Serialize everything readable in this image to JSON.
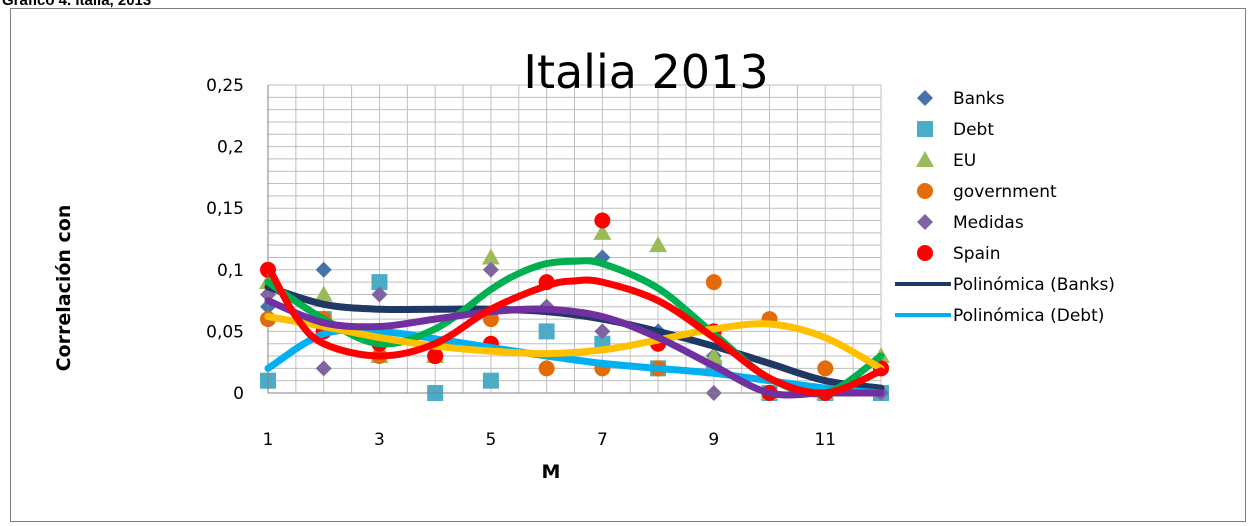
{
  "caption": "Grafico 4. Italia, 2013",
  "chart_data": {
    "type": "scatter",
    "title": "Italia 2013",
    "xlabel": "M",
    "ylabel": "Correlación con",
    "xlim": [
      1,
      12
    ],
    "ylim": [
      0,
      0.25
    ],
    "xticks": [
      1,
      3,
      5,
      7,
      9,
      11
    ],
    "xtick_labels": [
      "1",
      "3",
      "5",
      "7",
      "9",
      "11"
    ],
    "yticks": [
      0,
      0.05,
      0.1,
      0.15,
      0.2,
      0.25
    ],
    "ytick_labels": [
      "0",
      "0,05",
      "0,1",
      "0,15",
      "0,2",
      "0,25"
    ],
    "grid": true,
    "legend_position": "right",
    "series": [
      {
        "name": "Banks",
        "marker": "diamond",
        "color": "#4572a7",
        "x": [
          1,
          2,
          3,
          4,
          5,
          6,
          7,
          8,
          9,
          10,
          11,
          12
        ],
        "y": [
          0.07,
          0.1,
          0.09,
          0.03,
          0.06,
          0.07,
          0.11,
          0.05,
          0.03,
          0.0,
          0.0,
          0.02
        ]
      },
      {
        "name": "Debt",
        "marker": "square",
        "color": "#4bacc6",
        "x": [
          1,
          2,
          3,
          4,
          5,
          6,
          7,
          8,
          9,
          10,
          11,
          12
        ],
        "y": [
          0.01,
          0.06,
          0.09,
          0.0,
          0.01,
          0.05,
          0.04,
          0.02,
          0.02,
          0.0,
          0.0,
          0.0
        ]
      },
      {
        "name": "EU",
        "marker": "triangle",
        "color": "#9bbb59",
        "x": [
          1,
          2,
          3,
          4,
          5,
          6,
          7,
          8,
          9,
          10,
          11,
          12
        ],
        "y": [
          0.09,
          0.08,
          0.03,
          0.03,
          0.11,
          0.07,
          0.13,
          0.12,
          0.03,
          0.0,
          0.0,
          0.03
        ]
      },
      {
        "name": "government",
        "marker": "circle",
        "color": "#e36c09",
        "x": [
          1,
          2,
          3,
          4,
          5,
          6,
          7,
          8,
          9,
          10,
          11,
          12
        ],
        "y": [
          0.06,
          0.06,
          0.03,
          0.03,
          0.06,
          0.02,
          0.02,
          0.02,
          0.09,
          0.06,
          0.02,
          0.02
        ]
      },
      {
        "name": "Medidas",
        "marker": "diamond",
        "color": "#8064a2",
        "x": [
          1,
          2,
          3,
          4,
          5,
          6,
          7,
          8,
          9,
          10,
          11,
          12
        ],
        "y": [
          0.08,
          0.02,
          0.08,
          0.04,
          0.1,
          0.07,
          0.05,
          0.04,
          0.0,
          0.0,
          0.0,
          0.0
        ]
      },
      {
        "name": "Spain",
        "marker": "circle",
        "color": "#ff0000",
        "x": [
          1,
          2,
          3,
          4,
          5,
          6,
          7,
          8,
          9,
          10,
          11,
          12
        ],
        "y": [
          0.1,
          0.05,
          0.04,
          0.03,
          0.04,
          0.09,
          0.14,
          0.04,
          0.05,
          0.0,
          0.0,
          0.02
        ]
      }
    ],
    "trendlines": [
      {
        "name": "Polinómica (Banks)",
        "color": "#1f3864",
        "in_legend": true,
        "x": [
          1,
          2,
          3,
          4,
          5,
          6,
          7,
          8,
          9,
          10,
          11,
          12
        ],
        "y": [
          0.086,
          0.072,
          0.068,
          0.068,
          0.068,
          0.066,
          0.06,
          0.05,
          0.038,
          0.024,
          0.01,
          0.004
        ]
      },
      {
        "name": "Polinómica (Debt)",
        "color": "#00b0f0",
        "in_legend": true,
        "x": [
          1,
          2,
          3,
          4,
          5,
          6,
          7,
          8,
          9,
          10,
          11,
          12
        ],
        "y": [
          0.02,
          0.048,
          0.05,
          0.044,
          0.037,
          0.03,
          0.024,
          0.02,
          0.016,
          0.01,
          0.004,
          0.0
        ]
      },
      {
        "name": "",
        "color": "#00b050",
        "in_legend": false,
        "x": [
          1,
          2,
          3,
          4,
          5,
          5.5,
          6,
          6.5,
          7,
          8,
          9,
          10,
          11,
          12
        ],
        "y": [
          0.09,
          0.06,
          0.04,
          0.052,
          0.084,
          0.097,
          0.105,
          0.107,
          0.105,
          0.085,
          0.048,
          0.012,
          0.0,
          0.03
        ]
      },
      {
        "name": "",
        "color": "#ffc000",
        "in_legend": false,
        "x": [
          1,
          2,
          3,
          4,
          5,
          6,
          7,
          8,
          9,
          10,
          11,
          12
        ],
        "y": [
          0.062,
          0.054,
          0.045,
          0.038,
          0.034,
          0.032,
          0.035,
          0.043,
          0.052,
          0.056,
          0.045,
          0.02
        ]
      },
      {
        "name": "",
        "color": "#7030a0",
        "in_legend": false,
        "x": [
          1,
          2,
          3,
          4,
          5,
          6,
          7,
          8,
          9,
          10,
          11,
          12
        ],
        "y": [
          0.075,
          0.057,
          0.054,
          0.06,
          0.066,
          0.068,
          0.062,
          0.045,
          0.022,
          0.0,
          0.0,
          0.0
        ]
      },
      {
        "name": "",
        "color": "#ff0000",
        "in_legend": false,
        "x": [
          1,
          1.5,
          2,
          3,
          4,
          5,
          6,
          6.5,
          7,
          8,
          9,
          10,
          11,
          12
        ],
        "y": [
          0.103,
          0.062,
          0.04,
          0.03,
          0.04,
          0.068,
          0.087,
          0.091,
          0.09,
          0.075,
          0.045,
          0.012,
          0.0,
          0.018
        ]
      }
    ]
  }
}
